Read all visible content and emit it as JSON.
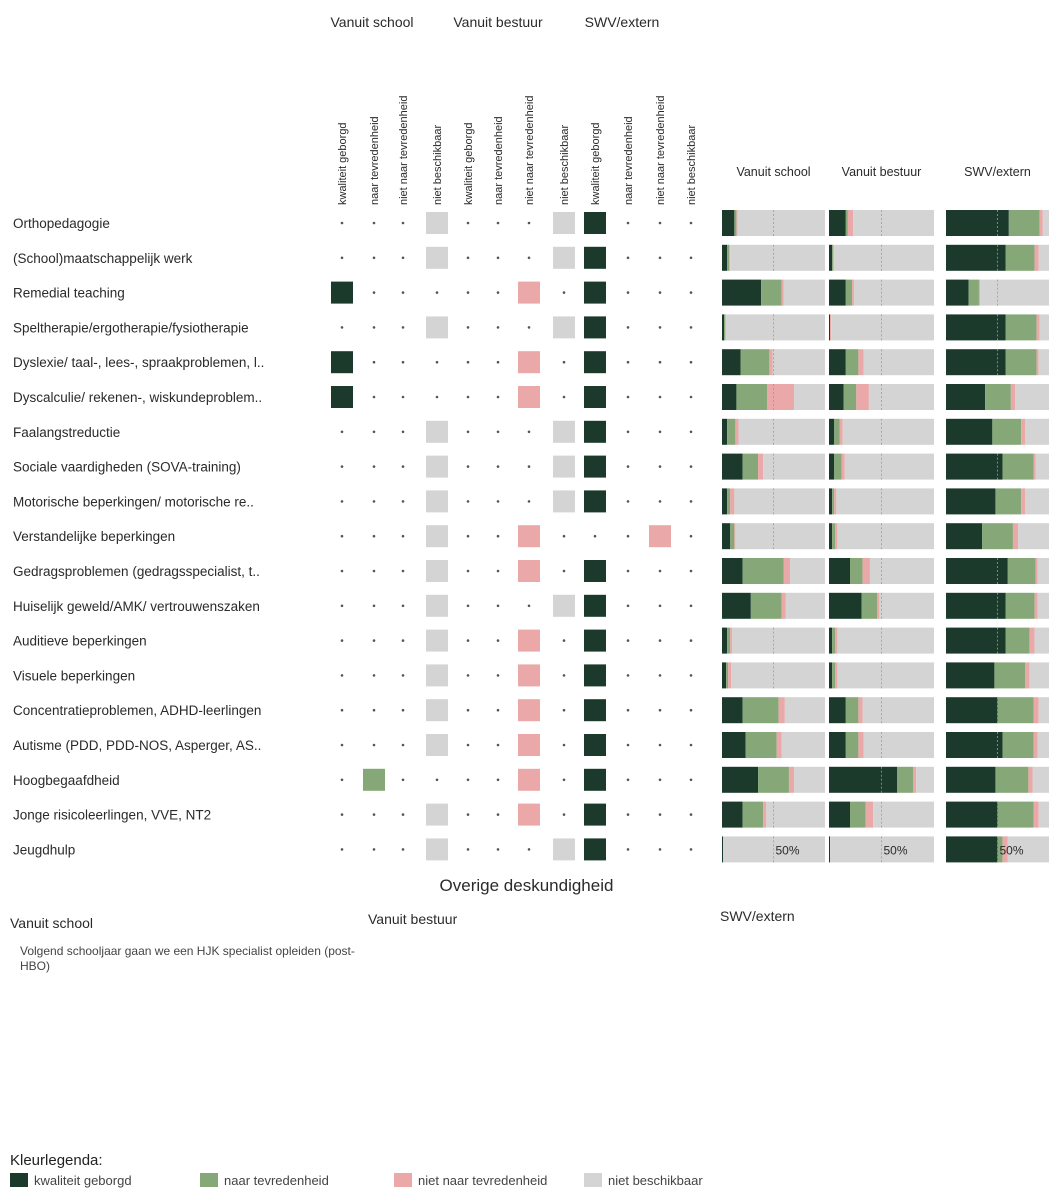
{
  "colors": {
    "kwaliteit_geborgd": "#1c3a2c",
    "naar_tevredenheid": "#86a878",
    "niet_naar_tevredenheid": "#eaa8a8",
    "niet_beschikbaar": "#d4d4d4"
  },
  "chart_data": [
    {
      "type": "table",
      "group_headers": [
        "Vanuit school",
        "Vanuit bestuur",
        "SWV/extern"
      ],
      "column_headers": [
        "kwaliteit geborgd",
        "naar tevredenheid",
        "niet naar tevredenheid",
        "niet beschikbaar",
        "kwaliteit geborgd",
        "naar tevredenheid",
        "niet naar tevredenheid",
        "niet beschikbaar",
        "kwaliteit geborgd",
        "naar tevredenheid",
        "niet naar tevredenheid",
        "niet beschikbaar"
      ],
      "rows": [
        "Orthopedagogie",
        "(School)maatschappelijk werk",
        "Remedial teaching",
        "Speltherapie/ergotherapie/fysiotherapie",
        "Dyslexie/ taal-, lees-, spraakproblemen, l..",
        "Dyscalculie/ rekenen-, wiskundeproblem..",
        "Faalangstreductie",
        "Sociale vaardigheden (SOVA-training)",
        "Motorische beperkingen/ motorische re..",
        "Verstandelijke beperkingen",
        "Gedragsproblemen (gedragsspecialist, t..",
        "Huiselijk geweld/AMK/ vertrouwenszaken",
        "Auditieve beperkingen",
        "Visuele beperkingen",
        "Concentratieproblemen, ADHD-leerlingen",
        "Autisme (PDD, PDD-NOS, Asperger, AS..",
        "Hoogbegaafdheid",
        "Jonge risicoleerlingen, VVE, NT2",
        "Jeugdhulp"
      ],
      "selected_column_per_group": [
        [
          4,
          4,
          1
        ],
        [
          4,
          4,
          1
        ],
        [
          1,
          3,
          1
        ],
        [
          4,
          4,
          1
        ],
        [
          1,
          3,
          1
        ],
        [
          1,
          3,
          1
        ],
        [
          4,
          4,
          1
        ],
        [
          4,
          4,
          1
        ],
        [
          4,
          4,
          1
        ],
        [
          4,
          3,
          3
        ],
        [
          4,
          3,
          1
        ],
        [
          4,
          4,
          1
        ],
        [
          4,
          3,
          1
        ],
        [
          4,
          3,
          1
        ],
        [
          4,
          3,
          1
        ],
        [
          4,
          3,
          1
        ],
        [
          2,
          3,
          1
        ],
        [
          4,
          3,
          1
        ],
        [
          4,
          4,
          1
        ]
      ]
    },
    {
      "type": "bar",
      "stacked": true,
      "orientation": "horizontal",
      "panels": [
        "Vanuit school",
        "Vanuit bestuur",
        "SWV/extern"
      ],
      "categories": [
        "Orthopedagogie",
        "(School)maatschappelijk werk",
        "Remedial teaching",
        "Speltherapie/ergotherapie/fysiotherapie",
        "Dyslexie/ taal-, lees-, spraakproblemen, l..",
        "Dyscalculie/ rekenen-, wiskundeproblem..",
        "Faalangstreductie",
        "Sociale vaardigheden (SOVA-training)",
        "Motorische beperkingen/ motorische re..",
        "Verstandelijke beperkingen",
        "Gedragsproblemen (gedragsspecialist, t..",
        "Huiselijk geweld/AMK/ vertrouwenszaken",
        "Auditieve beperkingen",
        "Visuele beperkingen",
        "Concentratieproblemen, ADHD-leerlingen",
        "Autisme (PDD, PDD-NOS, Asperger, AS..",
        "Hoogbegaafdheid",
        "Jonge risicoleerlingen, VVE, NT2",
        "Jeugdhulp"
      ],
      "series_order": [
        "kwaliteit geborgd",
        "naar tevredenheid",
        "niet naar tevredenheid",
        "niet beschikbaar"
      ],
      "xlim": [
        0,
        100
      ],
      "tick_label": "50%",
      "values_percent": [
        [
          [
            12,
            2,
            1,
            85
          ],
          [
            16,
            2,
            5,
            77
          ],
          [
            61,
            30,
            3,
            6
          ]
        ],
        [
          [
            5,
            2,
            1,
            92
          ],
          [
            3,
            1,
            1,
            95
          ],
          [
            58,
            28,
            4,
            10
          ]
        ],
        [
          [
            38,
            20,
            2,
            40
          ],
          [
            16,
            6,
            2,
            76
          ],
          [
            22,
            10,
            1,
            67
          ]
        ],
        [
          [
            2,
            1,
            1,
            96
          ],
          [
            1,
            0,
            1,
            98
          ],
          [
            58,
            30,
            3,
            9
          ]
        ],
        [
          [
            18,
            28,
            3,
            51
          ],
          [
            16,
            12,
            5,
            67
          ],
          [
            58,
            30,
            2,
            10
          ]
        ],
        [
          [
            14,
            30,
            26,
            30
          ],
          [
            14,
            12,
            12,
            62
          ],
          [
            38,
            25,
            4,
            33
          ]
        ],
        [
          [
            5,
            8,
            3,
            84
          ],
          [
            5,
            5,
            3,
            87
          ],
          [
            45,
            28,
            4,
            23
          ]
        ],
        [
          [
            20,
            15,
            5,
            60
          ],
          [
            5,
            7,
            3,
            85
          ],
          [
            55,
            30,
            2,
            13
          ]
        ],
        [
          [
            5,
            3,
            4,
            88
          ],
          [
            3,
            2,
            2,
            93
          ],
          [
            48,
            25,
            4,
            23
          ]
        ],
        [
          [
            8,
            4,
            1,
            87
          ],
          [
            3,
            3,
            2,
            92
          ],
          [
            35,
            30,
            5,
            30
          ]
        ],
        [
          [
            20,
            40,
            6,
            34
          ],
          [
            20,
            12,
            7,
            61
          ],
          [
            60,
            27,
            2,
            11
          ]
        ],
        [
          [
            28,
            30,
            4,
            38
          ],
          [
            31,
            15,
            2,
            52
          ],
          [
            58,
            28,
            3,
            11
          ]
        ],
        [
          [
            5,
            3,
            2,
            90
          ],
          [
            3,
            3,
            2,
            92
          ],
          [
            58,
            23,
            5,
            14
          ]
        ],
        [
          [
            4,
            2,
            3,
            91
          ],
          [
            3,
            3,
            2,
            92
          ],
          [
            47,
            30,
            4,
            19
          ]
        ],
        [
          [
            20,
            35,
            6,
            39
          ],
          [
            16,
            12,
            4,
            68
          ],
          [
            50,
            35,
            5,
            10
          ]
        ],
        [
          [
            23,
            30,
            5,
            42
          ],
          [
            16,
            12,
            5,
            67
          ],
          [
            55,
            30,
            4,
            11
          ]
        ],
        [
          [
            35,
            30,
            5,
            30
          ],
          [
            65,
            15,
            3,
            17
          ],
          [
            48,
            32,
            4,
            16
          ]
        ],
        [
          [
            20,
            20,
            3,
            57
          ],
          [
            20,
            15,
            7,
            58
          ],
          [
            50,
            35,
            5,
            10
          ]
        ],
        [
          [
            1,
            0,
            0,
            99
          ],
          [
            1,
            0,
            0,
            99
          ],
          [
            50,
            5,
            5,
            40
          ]
        ]
      ]
    }
  ],
  "overige": {
    "title": "Overige deskundigheid",
    "col1_label": "Vanuit school",
    "col1_text": "Volgend schooljaar gaan we een HJK specialist opleiden (post-HBO)",
    "col2_label": "Vanuit bestuur",
    "col3_label": "SWV/extern"
  },
  "legend": {
    "title": "Kleurlegenda:",
    "items": [
      "kwaliteit geborgd",
      "naar tevredenheid",
      "niet naar tevredenheid",
      "niet beschikbaar"
    ]
  }
}
